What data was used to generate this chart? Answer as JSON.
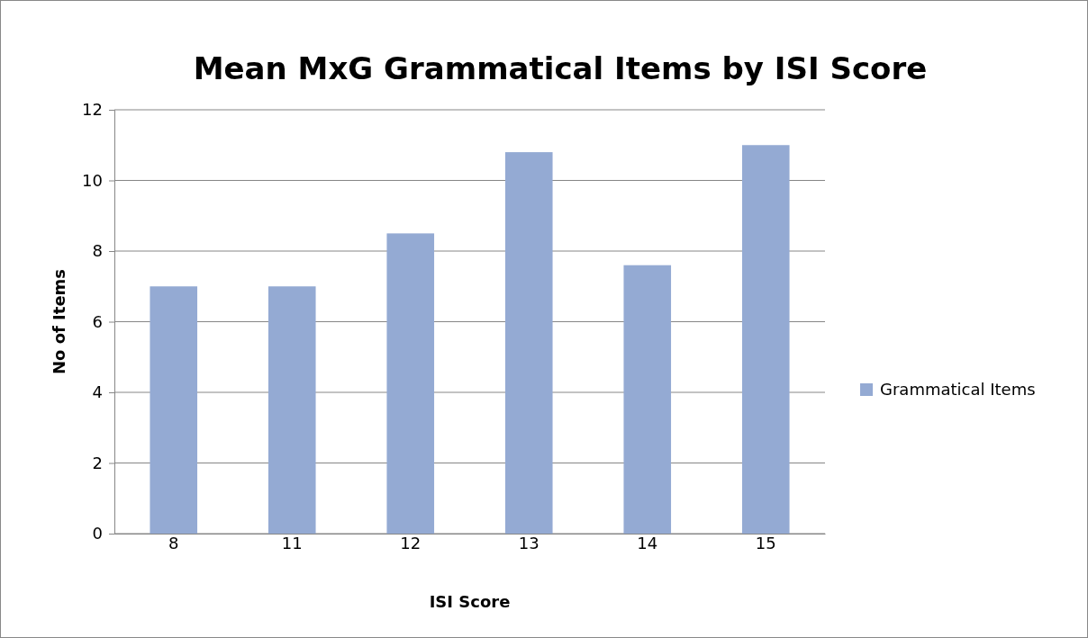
{
  "chart_data": {
    "type": "bar",
    "title": "Mean MxG Grammatical Items by ISI Score",
    "xlabel": "ISI Score",
    "ylabel": "No of Items",
    "categories": [
      "8",
      "11",
      "12",
      "13",
      "14",
      "15"
    ],
    "series": [
      {
        "name": "Grammatical Items",
        "color": "#94aad3",
        "values": [
          7,
          7,
          8.5,
          10.8,
          7.6,
          11
        ]
      }
    ],
    "ylim": [
      0,
      12
    ],
    "yticks": [
      0,
      2,
      4,
      6,
      8,
      10,
      12
    ],
    "grid": "y",
    "legend": "right"
  }
}
